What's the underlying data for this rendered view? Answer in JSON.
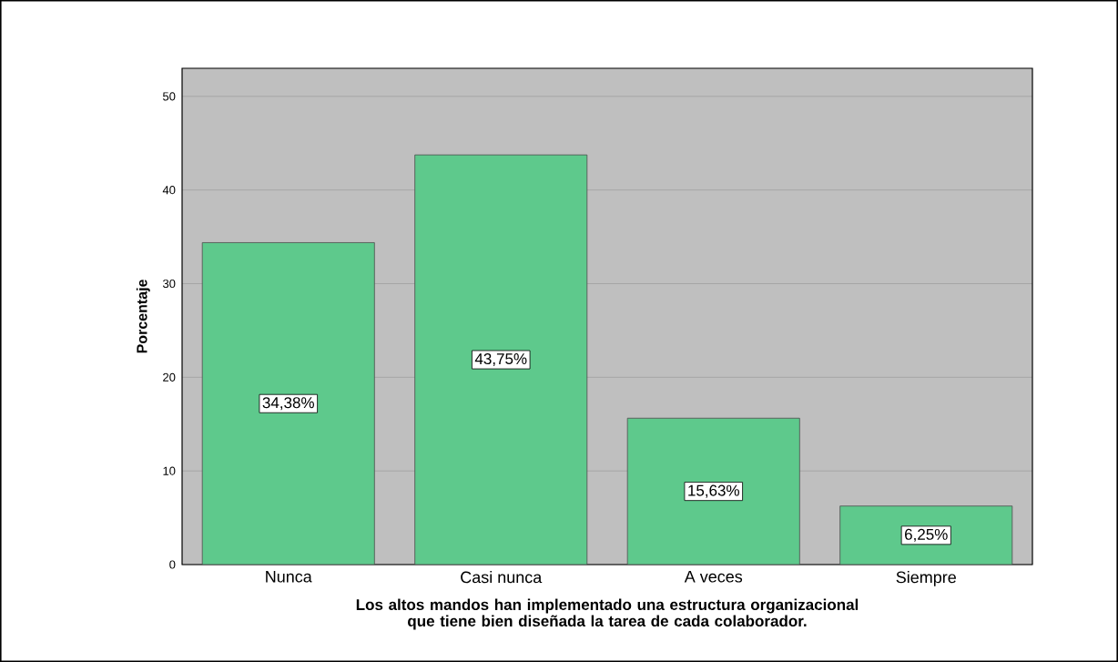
{
  "chart_data": {
    "type": "bar",
    "categories": [
      "Nunca",
      "Casi nunca",
      "A veces",
      "Siempre"
    ],
    "values": [
      34.38,
      43.75,
      15.63,
      6.25
    ],
    "value_labels": [
      "34,38%",
      "43,75%",
      "15,63%",
      "6,25%"
    ],
    "color": "#5ec98c",
    "xlabel": "Los altos mandos han implementado una estructura organizacional que tiene bien diseñada la tarea de cada colaborador.",
    "ylabel": "Porcentaje",
    "ylim": [
      0,
      53
    ],
    "yticks": [
      0,
      10,
      20,
      30,
      40,
      50
    ],
    "grid": "y"
  }
}
